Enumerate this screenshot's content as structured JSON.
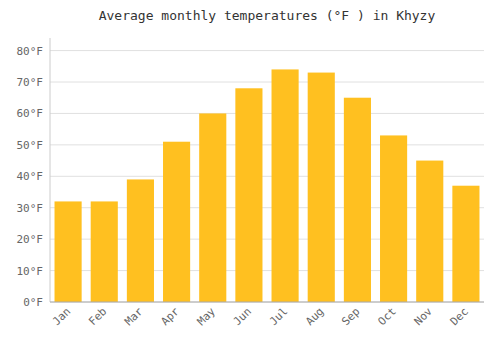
{
  "chart_data": {
    "type": "bar",
    "title": "Average monthly temperatures (°F ) in Khyzy",
    "categories": [
      "Jan",
      "Feb",
      "Mar",
      "Apr",
      "May",
      "Jun",
      "Jul",
      "Aug",
      "Sep",
      "Oct",
      "Nov",
      "Dec"
    ],
    "values": [
      32,
      32,
      39,
      51,
      60,
      68,
      74,
      73,
      65,
      53,
      45,
      37
    ],
    "color": "#FFC020",
    "ylim": [
      0,
      84
    ],
    "yticks": [
      {
        "value": 0,
        "label": "0°F"
      },
      {
        "value": 10,
        "label": "10°F"
      },
      {
        "value": 20,
        "label": "20°F"
      },
      {
        "value": 30,
        "label": "30°F"
      },
      {
        "value": 40,
        "label": "40°F"
      },
      {
        "value": 50,
        "label": "50°F"
      },
      {
        "value": 60,
        "label": "60°F"
      },
      {
        "value": 70,
        "label": "70°F"
      },
      {
        "value": 80,
        "label": "80°F"
      }
    ],
    "grid": true
  }
}
